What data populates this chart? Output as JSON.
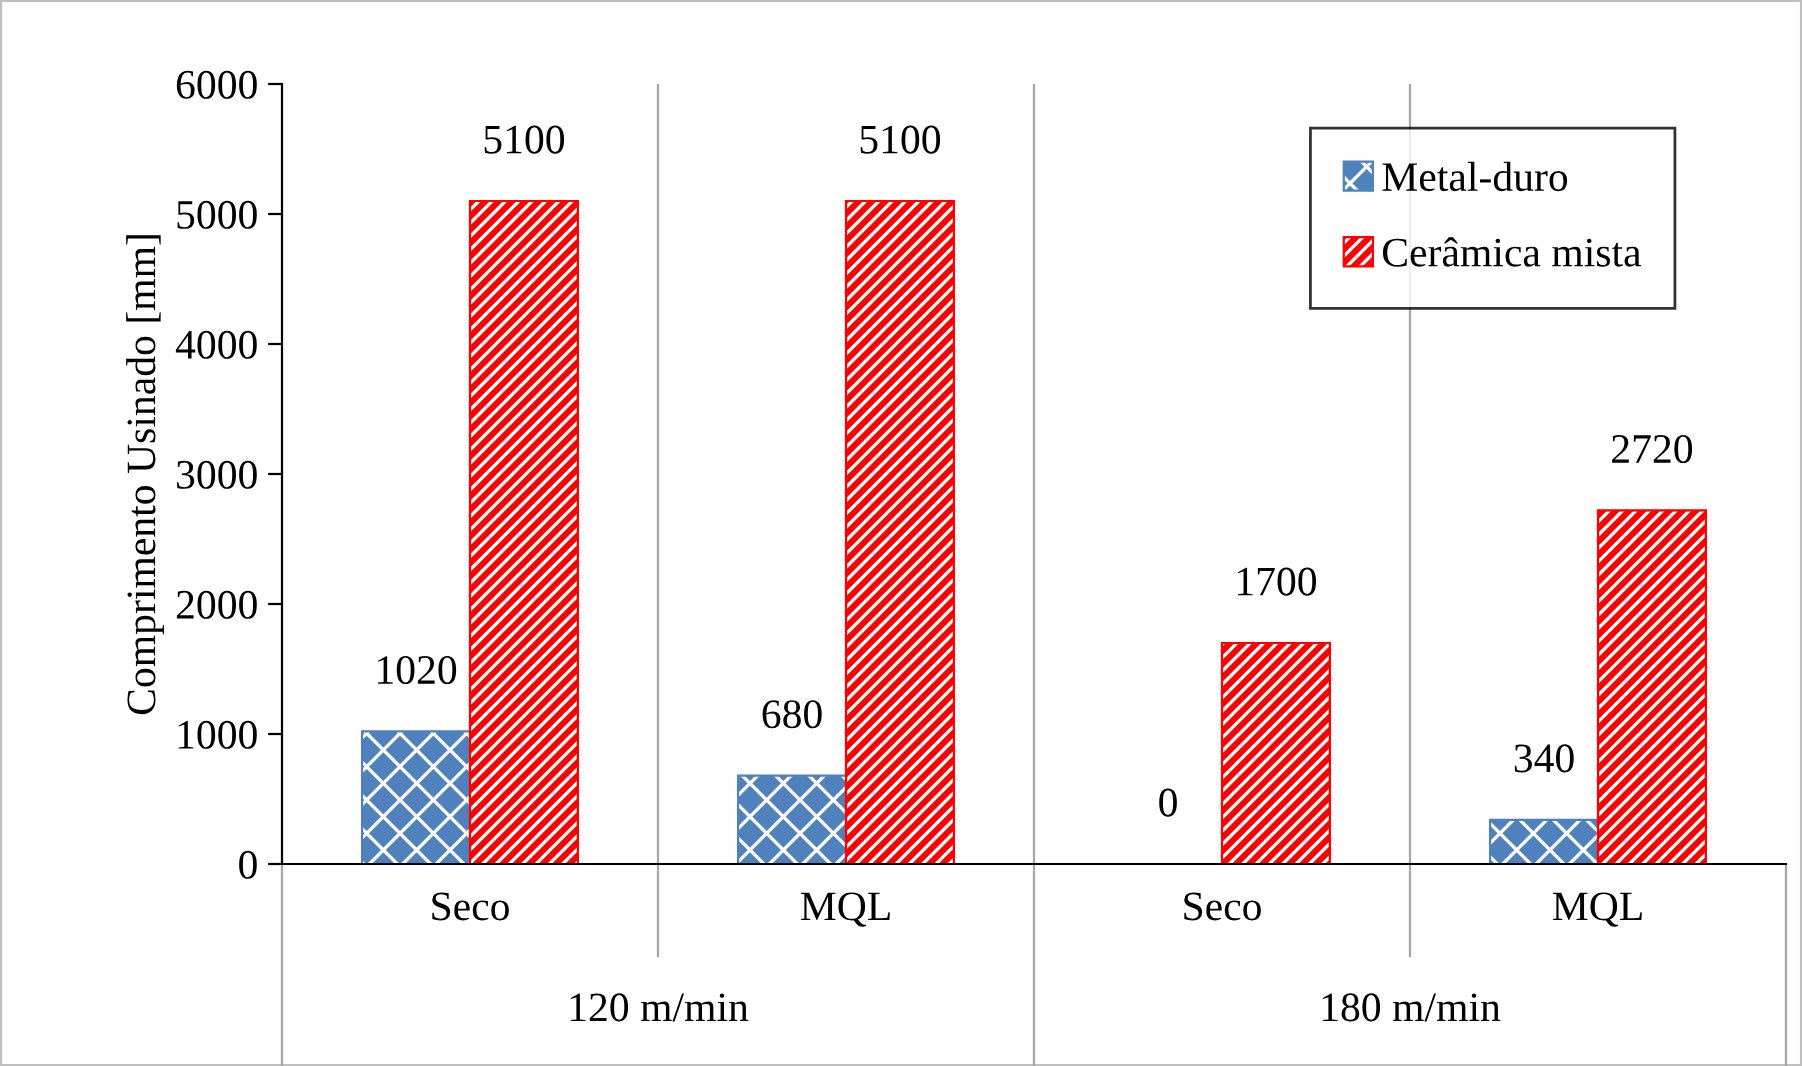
{
  "chart_data": {
    "type": "bar",
    "ylabel": "Comprimento Usinado [mm]",
    "categories": [
      "Seco",
      "MQL",
      "Seco",
      "MQL"
    ],
    "annotations": [
      "120 m/min",
      "180 m/min"
    ],
    "series": [
      {
        "name": "Metal-duro",
        "color": "#4f81bd",
        "values": [
          1020,
          680,
          0,
          340
        ]
      },
      {
        "name": "Cerâmica mista",
        "color": "#ff0000",
        "values": [
          5100,
          5100,
          1700,
          2720
        ]
      }
    ],
    "ylim": [
      0,
      6000
    ],
    "yticks": [
      0,
      1000,
      2000,
      3000,
      4000,
      5000,
      6000
    ],
    "grid": "x",
    "legend": "top right",
    "data_labels": true
  }
}
